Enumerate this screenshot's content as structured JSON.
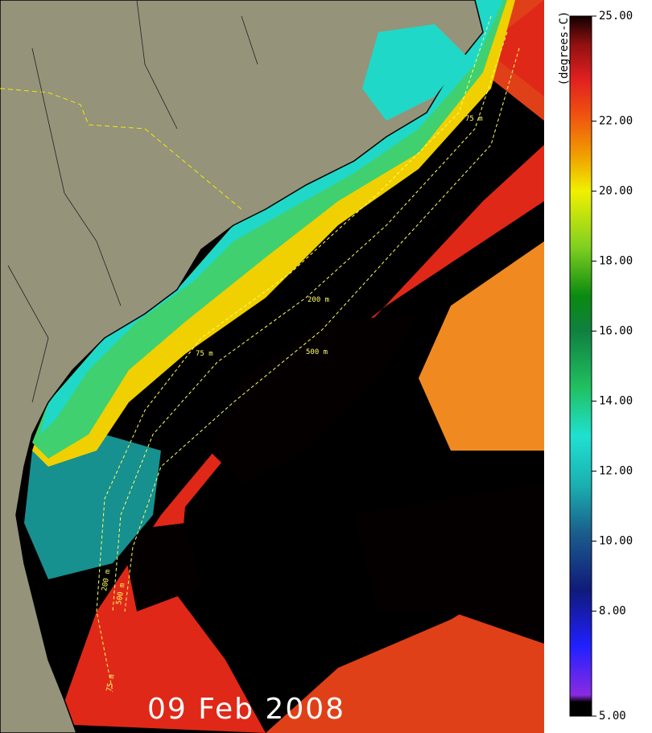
{
  "map": {
    "date": "09 Feb 2008",
    "contour_labels": [
      "75 m",
      "200 m",
      "500 m"
    ]
  },
  "colorbar": {
    "unit": "(degrees-C)",
    "range": [
      5,
      25
    ],
    "ticks": [
      {
        "value": 25,
        "label": "25.00"
      },
      {
        "value": 22,
        "label": "22.00"
      },
      {
        "value": 20,
        "label": "20.00"
      },
      {
        "value": 18,
        "label": "18.00"
      },
      {
        "value": 16,
        "label": "16.00"
      },
      {
        "value": 14,
        "label": "14.00"
      },
      {
        "value": 12,
        "label": "12.00"
      },
      {
        "value": 10,
        "label": "10.00"
      },
      {
        "value": 8,
        "label": "8.00"
      },
      {
        "value": 5,
        "label": "5.00"
      }
    ]
  }
}
